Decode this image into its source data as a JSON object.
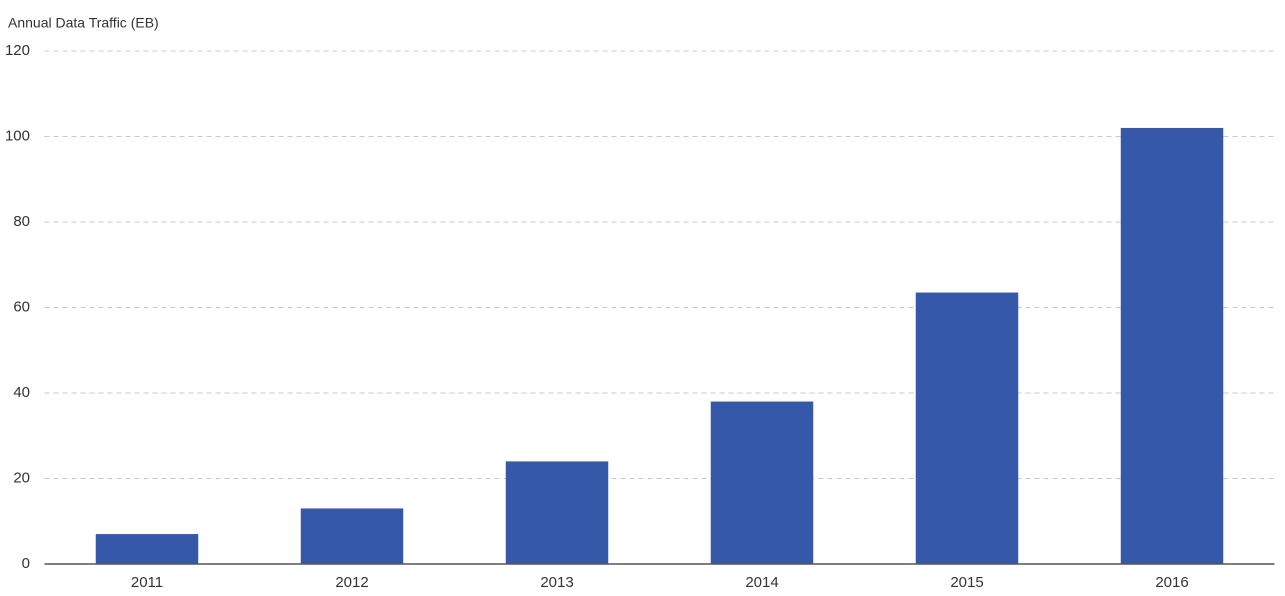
{
  "chart_data": {
    "type": "bar",
    "y_label": "Annual Data Traffic (EB)",
    "categories": [
      "2011",
      "2012",
      "2013",
      "2014",
      "2015",
      "2016"
    ],
    "values": [
      7,
      13,
      24,
      38,
      63.5,
      102
    ],
    "color": "#3658a9",
    "ylim": [
      0,
      120
    ],
    "yticks": [
      0,
      20,
      40,
      60,
      80,
      100,
      120
    ],
    "grid": true
  }
}
